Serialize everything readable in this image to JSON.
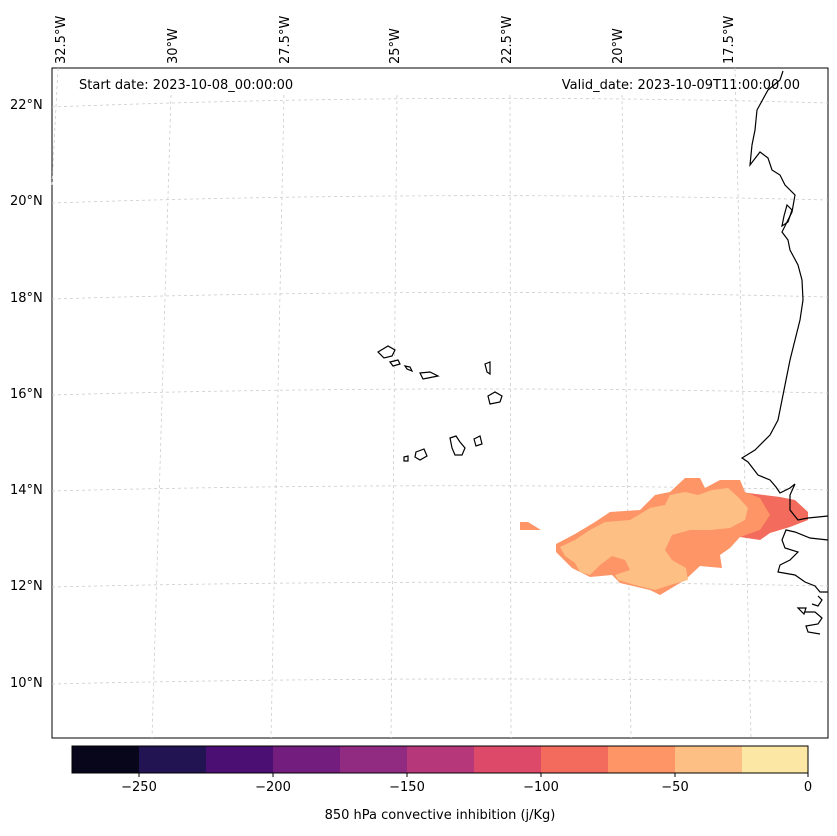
{
  "header": {
    "start_date": "Start date: 2023-10-08_00:00:00",
    "valid_date": "Valid_date: 2023-10-09T11:00:00.00"
  },
  "longitude_labels": [
    "32.5°W",
    "30°W",
    "27.5°W",
    "25°W",
    "22.5°W",
    "20°W",
    "17.5°W"
  ],
  "latitude_labels": [
    "22°N",
    "20°N",
    "18°N",
    "16°N",
    "14°N",
    "12°N",
    "10°N"
  ],
  "colorbar": {
    "label": "850 hPa convective inhibition (j/Kg)",
    "tick_labels": [
      "−250",
      "−200",
      "−150",
      "−100",
      "−50",
      "0"
    ],
    "colors": [
      "#07061b",
      "#221353",
      "#4b0f74",
      "#731d7e",
      "#912b81",
      "#b6377a",
      "#dd4a69",
      "#f36b5c",
      "#fd9567",
      "#fdbf83",
      "#fde7a5"
    ]
  },
  "cin_field_colors": {
    "minus_100_to_minus_75": "#f36b5c",
    "minus_75_to_minus_50": "#fd9567",
    "minus_50_to_minus_25": "#fdbf83"
  }
}
